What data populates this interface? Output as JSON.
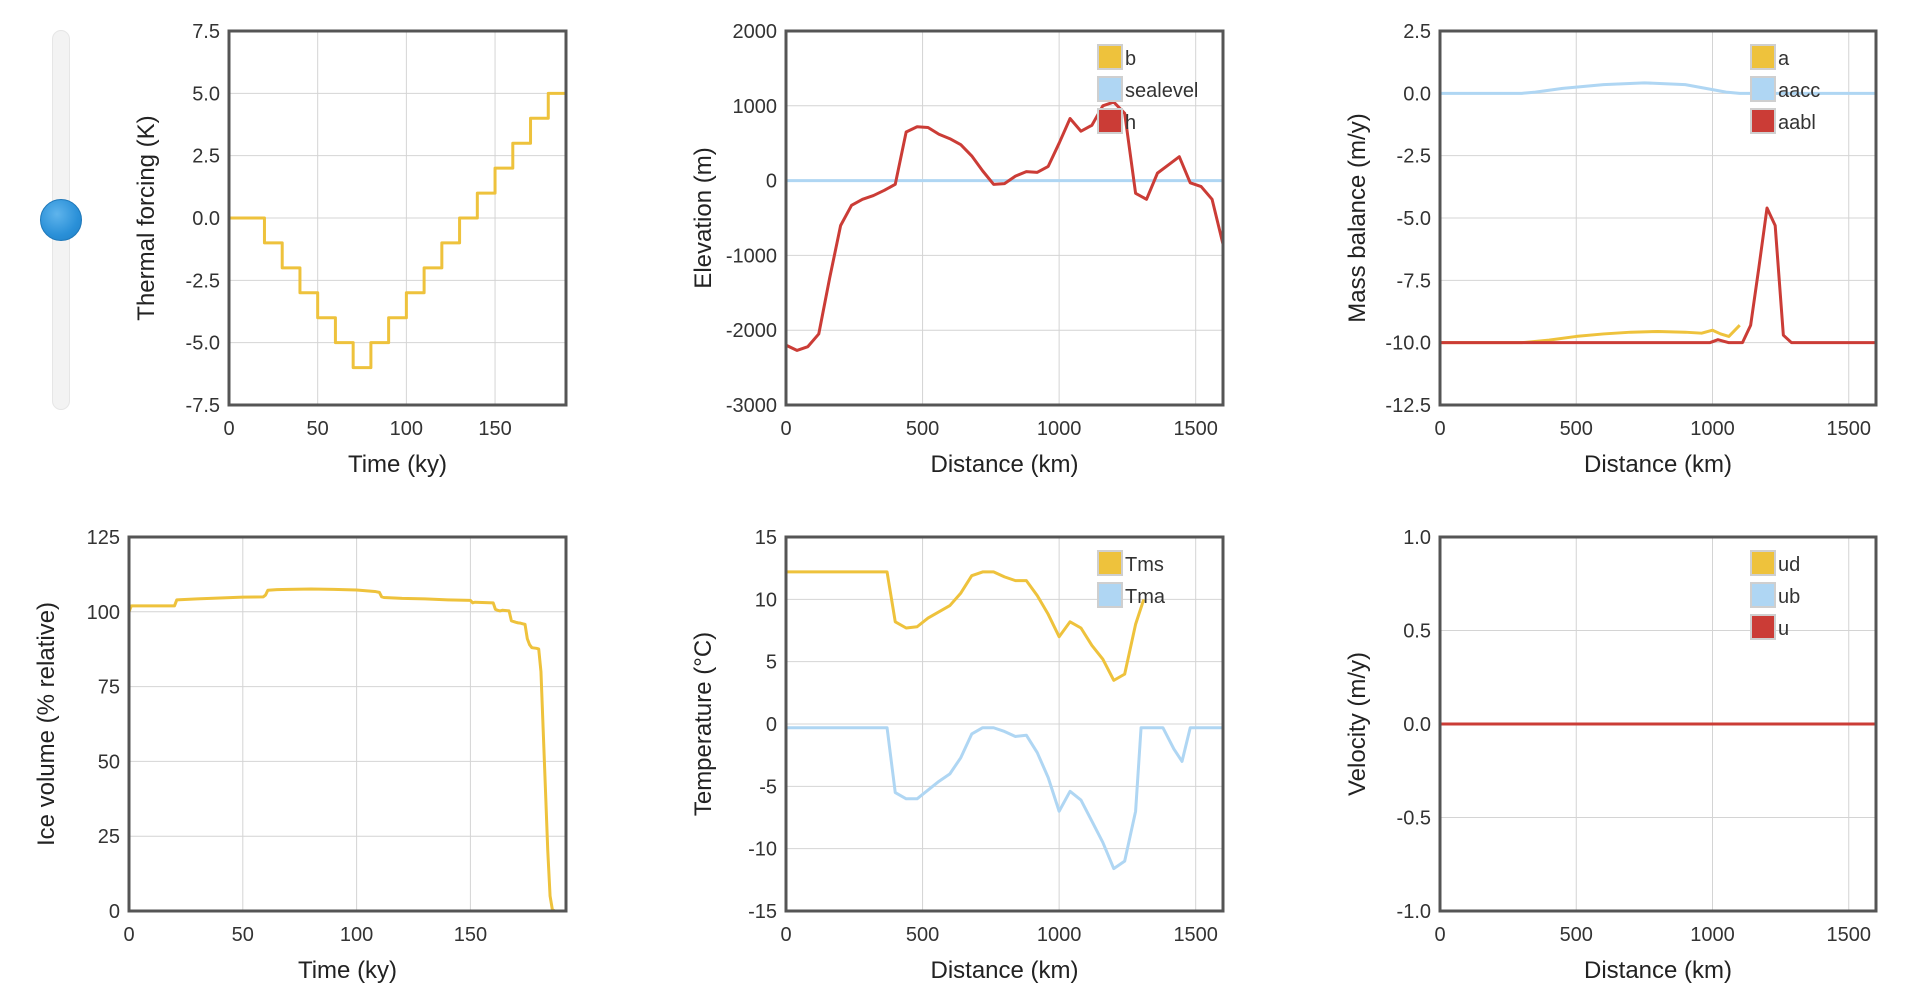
{
  "slider": {
    "value_fraction": 0.5
  },
  "colors": {
    "yellow": "#eec23c",
    "blue": "#afd6f3",
    "red": "#cb3c36",
    "grid": "#d4d4d4",
    "frame": "#555555"
  },
  "chart_data": [
    {
      "type": "line",
      "xlabel": "Time (ky)",
      "ylabel": "Thermal forcing (K)",
      "xlim": [
        0,
        190
      ],
      "ylim": [
        -7.5,
        7.5
      ],
      "xticks": [
        0,
        50,
        100,
        150
      ],
      "yticks": [
        -7.5,
        -5.0,
        -2.5,
        0.0,
        2.5,
        5.0,
        7.5
      ],
      "xtick_labels": [
        "0",
        "50",
        "100",
        "150"
      ],
      "ytick_labels": [
        "-7.5",
        "-5.0",
        "-2.5",
        "0.0",
        "2.5",
        "5.0",
        "7.5"
      ],
      "grid": true,
      "series": [
        {
          "color": "yellow",
          "step": true,
          "x": [
            0,
            20,
            30,
            40,
            50,
            60,
            70,
            80,
            90,
            100,
            110,
            120,
            130,
            140,
            150,
            160,
            170,
            180,
            190
          ],
          "y": [
            0,
            -1,
            -2,
            -3,
            -4,
            -5,
            -6,
            -5,
            -4,
            -3,
            -2,
            -1,
            0,
            1,
            2,
            3,
            4,
            5,
            5
          ]
        }
      ]
    },
    {
      "type": "line",
      "xlabel": "Distance (km)",
      "ylabel": "Elevation (m)",
      "xlim": [
        0,
        1600
      ],
      "ylim": [
        -3000,
        2000
      ],
      "xticks": [
        0,
        500,
        1000,
        1500
      ],
      "yticks": [
        -3000,
        -2000,
        -1000,
        0,
        1000,
        2000
      ],
      "xtick_labels": [
        "0",
        "500",
        "1000",
        "1500"
      ],
      "ytick_labels": [
        "-3000",
        "-2000",
        "-1000",
        "0",
        "1000",
        "2000"
      ],
      "grid": true,
      "legend": [
        {
          "label": "b",
          "color": "yellow"
        },
        {
          "label": "sealevel",
          "color": "blue"
        },
        {
          "label": "h",
          "color": "red"
        }
      ],
      "legend_position": "top-right",
      "series": [
        {
          "name": "sealevel",
          "color": "blue",
          "x": [
            0,
            1600
          ],
          "y": [
            0,
            0
          ]
        },
        {
          "name": "h",
          "color": "red",
          "x": [
            0,
            40,
            80,
            120,
            160,
            200,
            240,
            280,
            320,
            360,
            400,
            440,
            480,
            520,
            560,
            600,
            640,
            680,
            720,
            760,
            800,
            840,
            880,
            920,
            960,
            1000,
            1040,
            1080,
            1120,
            1160,
            1200,
            1240,
            1280,
            1320,
            1360,
            1400,
            1440,
            1480,
            1520,
            1560,
            1600
          ],
          "y": [
            -2200,
            -2270,
            -2220,
            -2050,
            -1300,
            -600,
            -330,
            -250,
            -200,
            -130,
            -50,
            650,
            720,
            710,
            620,
            560,
            480,
            330,
            130,
            -50,
            -40,
            60,
            120,
            110,
            190,
            500,
            830,
            660,
            740,
            1000,
            1050,
            900,
            -170,
            -250,
            100,
            210,
            320,
            -30,
            -80,
            -250,
            -850
          ]
        }
      ]
    },
    {
      "type": "line",
      "xlabel": "Distance (km)",
      "ylabel": "Mass balance (m/y)",
      "xlim": [
        0,
        1600
      ],
      "ylim": [
        -12.5,
        2.5
      ],
      "xticks": [
        0,
        500,
        1000,
        1500
      ],
      "yticks": [
        -12.5,
        -10.0,
        -7.5,
        -5.0,
        -2.5,
        0.0,
        2.5
      ],
      "xtick_labels": [
        "0",
        "500",
        "1000",
        "1500"
      ],
      "ytick_labels": [
        "-12.5",
        "-10.0",
        "-7.5",
        "-5.0",
        "-2.5",
        "0.0",
        "2.5"
      ],
      "grid": true,
      "legend": [
        {
          "label": "a",
          "color": "yellow"
        },
        {
          "label": "aacc",
          "color": "blue"
        },
        {
          "label": "aabl",
          "color": "red"
        }
      ],
      "legend_position": "top-right",
      "series": [
        {
          "name": "aacc",
          "color": "blue",
          "x": [
            0,
            300,
            350,
            450,
            600,
            750,
            900,
            1000,
            1050,
            1100,
            1150,
            1600
          ],
          "y": [
            0,
            0,
            0.05,
            0.2,
            0.35,
            0.42,
            0.35,
            0.15,
            0.05,
            0,
            0,
            0
          ]
        },
        {
          "name": "a",
          "color": "yellow",
          "x": [
            0,
            300,
            400,
            500,
            600,
            700,
            800,
            900,
            960,
            1000,
            1030,
            1060,
            1100
          ],
          "y": [
            -10,
            -10,
            -9.9,
            -9.75,
            -9.65,
            -9.58,
            -9.55,
            -9.58,
            -9.62,
            -9.5,
            -9.65,
            -9.75,
            -9.3
          ]
        },
        {
          "name": "aabl",
          "color": "red",
          "x": [
            0,
            950,
            990,
            1020,
            1060,
            1110,
            1140,
            1170,
            1200,
            1230,
            1260,
            1290,
            1600
          ],
          "y": [
            -10,
            -10,
            -10,
            -9.88,
            -10,
            -10,
            -9.3,
            -7,
            -4.6,
            -5.3,
            -9.7,
            -10,
            -10
          ]
        }
      ]
    },
    {
      "type": "line",
      "xlabel": "Time (ky)",
      "ylabel": "Ice volume (% relative)",
      "xlim": [
        0,
        192
      ],
      "ylim": [
        0,
        125
      ],
      "xticks": [
        0,
        50,
        100,
        150
      ],
      "yticks": [
        0,
        25,
        50,
        75,
        100,
        125
      ],
      "xtick_labels": [
        "0",
        "50",
        "100",
        "150"
      ],
      "ytick_labels": [
        "0",
        "25",
        "50",
        "75",
        "100",
        "125"
      ],
      "grid": true,
      "series": [
        {
          "color": "yellow",
          "x": [
            0,
            1,
            20,
            21,
            30,
            40,
            50,
            59,
            60,
            61,
            65,
            70,
            80,
            90,
            100,
            108,
            110,
            111,
            112,
            120,
            130,
            140,
            150,
            151,
            152,
            160,
            161,
            162,
            163,
            164,
            167,
            168,
            170,
            171,
            172,
            173,
            174,
            175,
            176,
            177,
            179,
            180,
            181,
            182,
            183,
            184,
            185,
            186,
            187,
            190,
            192
          ],
          "y": [
            100,
            102,
            102,
            104,
            104.3,
            104.6,
            104.9,
            105,
            105.6,
            107.2,
            107.4,
            107.5,
            107.6,
            107.5,
            107.3,
            106.8,
            106.5,
            105,
            104.8,
            104.5,
            104.3,
            104,
            103.8,
            103,
            103.2,
            103,
            100.8,
            100.5,
            100.3,
            100.5,
            100.3,
            97,
            96.5,
            96.3,
            96.2,
            96,
            95.8,
            91,
            89,
            88,
            87.8,
            87.6,
            80,
            60,
            40,
            20,
            5,
            0.5,
            0,
            0,
            0
          ]
        }
      ]
    },
    {
      "type": "line",
      "xlabel": "Distance (km)",
      "ylabel": "Temperature (°C)",
      "xlim": [
        0,
        1600
      ],
      "ylim": [
        -15,
        15
      ],
      "xticks": [
        0,
        500,
        1000,
        1500
      ],
      "yticks": [
        -15,
        -10,
        -5,
        0,
        5,
        10,
        15
      ],
      "xtick_labels": [
        "0",
        "500",
        "1000",
        "1500"
      ],
      "ytick_labels": [
        "-15",
        "-10",
        "-5",
        "0",
        "5",
        "10",
        "15"
      ],
      "grid": true,
      "legend": [
        {
          "label": "Tms",
          "color": "yellow"
        },
        {
          "label": "Tma",
          "color": "blue"
        }
      ],
      "legend_position": "top-right",
      "series": [
        {
          "name": "Tms",
          "color": "yellow",
          "x": [
            0,
            370,
            400,
            440,
            480,
            520,
            560,
            600,
            640,
            680,
            720,
            760,
            800,
            840,
            880,
            920,
            960,
            1000,
            1040,
            1080,
            1120,
            1160,
            1200,
            1240,
            1280,
            1310
          ],
          "y": [
            12.2,
            12.2,
            8.2,
            7.7,
            7.8,
            8.5,
            9,
            9.5,
            10.5,
            11.9,
            12.2,
            12.2,
            11.8,
            11.5,
            11.5,
            10.3,
            8.8,
            7,
            8.2,
            7.7,
            6.3,
            5.2,
            3.5,
            4,
            8,
            10
          ]
        },
        {
          "name": "Tma",
          "color": "blue",
          "x": [
            0,
            370,
            400,
            440,
            480,
            520,
            560,
            600,
            640,
            680,
            720,
            760,
            800,
            840,
            880,
            920,
            960,
            1000,
            1040,
            1080,
            1120,
            1160,
            1200,
            1240,
            1280,
            1300,
            1340,
            1380,
            1420,
            1450,
            1480,
            1600
          ],
          "y": [
            -0.3,
            -0.3,
            -5.5,
            -6,
            -6,
            -5.3,
            -4.6,
            -4,
            -2.7,
            -0.8,
            -0.3,
            -0.3,
            -0.6,
            -1,
            -0.9,
            -2.3,
            -4.3,
            -7,
            -5.4,
            -6.1,
            -7.8,
            -9.5,
            -11.6,
            -11,
            -7,
            -0.3,
            -0.3,
            -0.3,
            -2,
            -3,
            -0.3,
            -0.3
          ]
        }
      ]
    },
    {
      "type": "line",
      "xlabel": "Distance (km)",
      "ylabel": "Velocity (m/y)",
      "xlim": [
        0,
        1600
      ],
      "ylim": [
        -1.0,
        1.0
      ],
      "xticks": [
        0,
        500,
        1000,
        1500
      ],
      "yticks": [
        -1.0,
        -0.5,
        0.0,
        0.5,
        1.0
      ],
      "xtick_labels": [
        "0",
        "500",
        "1000",
        "1500"
      ],
      "ytick_labels": [
        "-1.0",
        "-0.5",
        "0.0",
        "0.5",
        "1.0"
      ],
      "grid": true,
      "legend": [
        {
          "label": "ud",
          "color": "yellow"
        },
        {
          "label": "ub",
          "color": "blue"
        },
        {
          "label": "u",
          "color": "red"
        }
      ],
      "legend_position": "top-right",
      "series": [
        {
          "name": "u",
          "color": "red",
          "x": [
            0,
            1600
          ],
          "y": [
            0,
            0
          ]
        }
      ]
    }
  ]
}
